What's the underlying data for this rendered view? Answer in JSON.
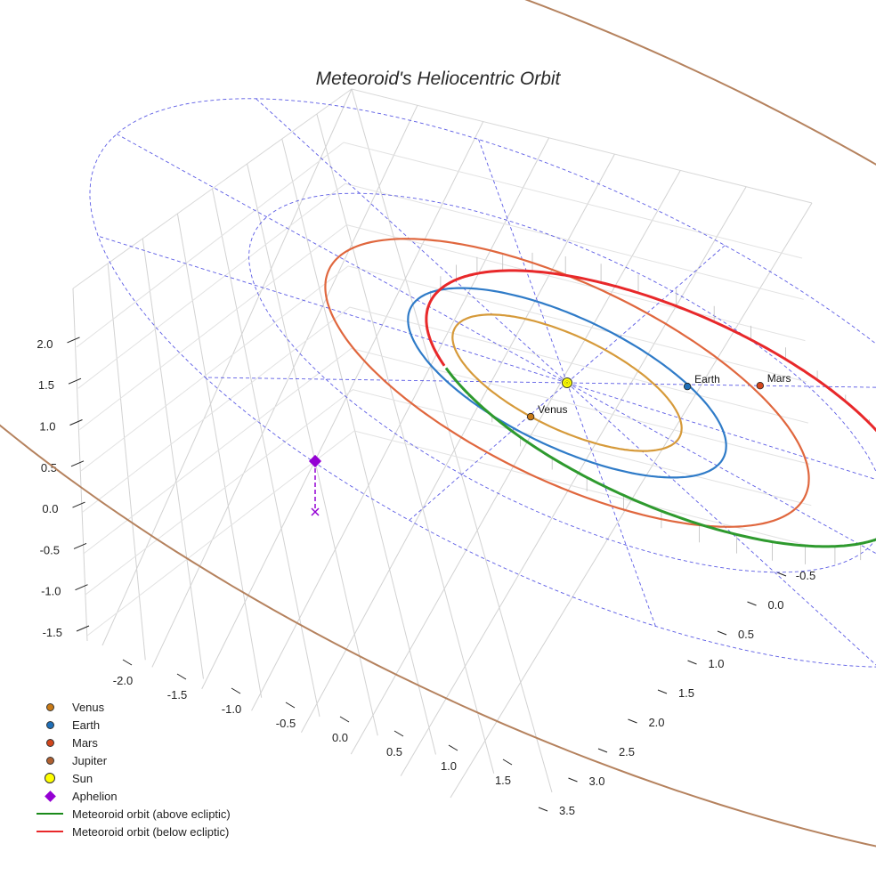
{
  "chart_data": {
    "type": "3d-line",
    "title": "Meteoroid's Heliocentric Orbit",
    "x_axis": {
      "ticks": [
        "-2.0",
        "-1.5",
        "-1.0",
        "-0.5",
        "0.0",
        "0.5",
        "1.0",
        "1.5"
      ],
      "range": [
        -2.3,
        1.8
      ]
    },
    "y_axis": {
      "ticks": [
        "-0.5",
        "0.0",
        "0.5",
        "1.0",
        "1.5",
        "2.0",
        "2.5",
        "3.0",
        "3.5"
      ],
      "range": [
        -0.7,
        3.6
      ]
    },
    "z_axis": {
      "ticks": [
        "-1.5",
        "-1.0",
        "-0.5",
        "0.0",
        "0.5",
        "1.0",
        "1.5",
        "2.0"
      ],
      "range": [
        -1.7,
        2.3
      ]
    },
    "orbits": [
      {
        "name": "Venus",
        "radius_au": 0.72,
        "color": "#d69a3a"
      },
      {
        "name": "Earth",
        "radius_au": 1.0,
        "color": "#2f7bc8"
      },
      {
        "name": "Mars",
        "radius_au": 1.52,
        "color": "#e0673e"
      },
      {
        "name": "Jupiter",
        "radius_au": 5.2,
        "color": "#b5825e"
      }
    ],
    "planets": [
      {
        "name": "Venus",
        "label": "Venus",
        "color": "#c97a16"
      },
      {
        "name": "Earth",
        "label": "Earth",
        "color": "#1f6fb8"
      },
      {
        "name": "Mars",
        "label": "Mars",
        "color": "#d2461c"
      }
    ],
    "sun": {
      "name": "Sun",
      "color": "#ffff00"
    },
    "aphelion": {
      "name": "Aphelion",
      "color": "#9400d3"
    },
    "meteoroid_orbit": {
      "above_label": "Meteoroid orbit (above ecliptic)",
      "below_label": "Meteoroid orbit (below ecliptic)",
      "above_color": "#2e9a2e",
      "below_color": "#e8282a"
    },
    "ecliptic_grid": {
      "circle_radii_au": [
        1,
        2,
        3
      ],
      "radial_lines": 12,
      "color": "#3f3fe0"
    }
  },
  "legend": [
    {
      "label": "Venus",
      "kind": "dot",
      "color": "#c97a16"
    },
    {
      "label": "Earth",
      "kind": "dot",
      "color": "#1f6fb8"
    },
    {
      "label": "Mars",
      "kind": "dot",
      "color": "#d2461c"
    },
    {
      "label": "Jupiter",
      "kind": "dot",
      "color": "#b06030"
    },
    {
      "label": "Sun",
      "kind": "sun",
      "color": "#ffff00"
    },
    {
      "label": "Aphelion",
      "kind": "diamond",
      "color": "#9400d3"
    },
    {
      "label": "Meteoroid orbit (above ecliptic)",
      "kind": "line",
      "color": "#1a8a1a"
    },
    {
      "label": "Meteoroid orbit (below ecliptic)",
      "kind": "line",
      "color": "#e8282a"
    }
  ]
}
